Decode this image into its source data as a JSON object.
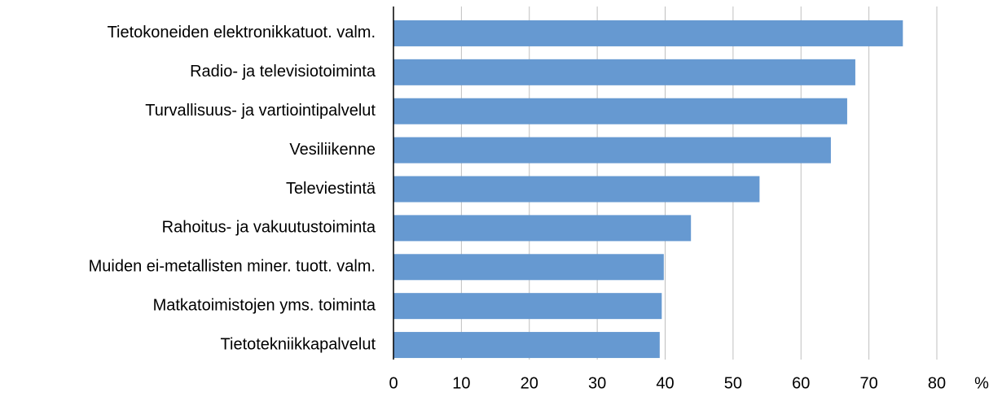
{
  "chart_data": {
    "type": "bar",
    "orientation": "horizontal",
    "categories": [
      "Tietokoneiden elektronikkatuot. valm.",
      "Radio- ja televisiotoiminta",
      "Turvallisuus- ja vartiointipalvelut",
      "Vesiliikenne",
      "Televiestintä",
      "Rahoitus- ja vakuutustoiminta",
      "Muiden ei-metallisten miner. tuott.  valm.",
      "Matkatoimistojen yms.  toiminta",
      "Tietotekniikkapalvelut"
    ],
    "values": [
      75,
      68,
      66.8,
      64.4,
      53.9,
      43.8,
      39.8,
      39.5,
      39.2
    ],
    "color": "#6699d1",
    "x_label": "%",
    "xlim": [
      0,
      80
    ],
    "xticks": [
      0,
      10,
      20,
      30,
      40,
      50,
      60,
      70,
      80
    ],
    "grid": true
  }
}
